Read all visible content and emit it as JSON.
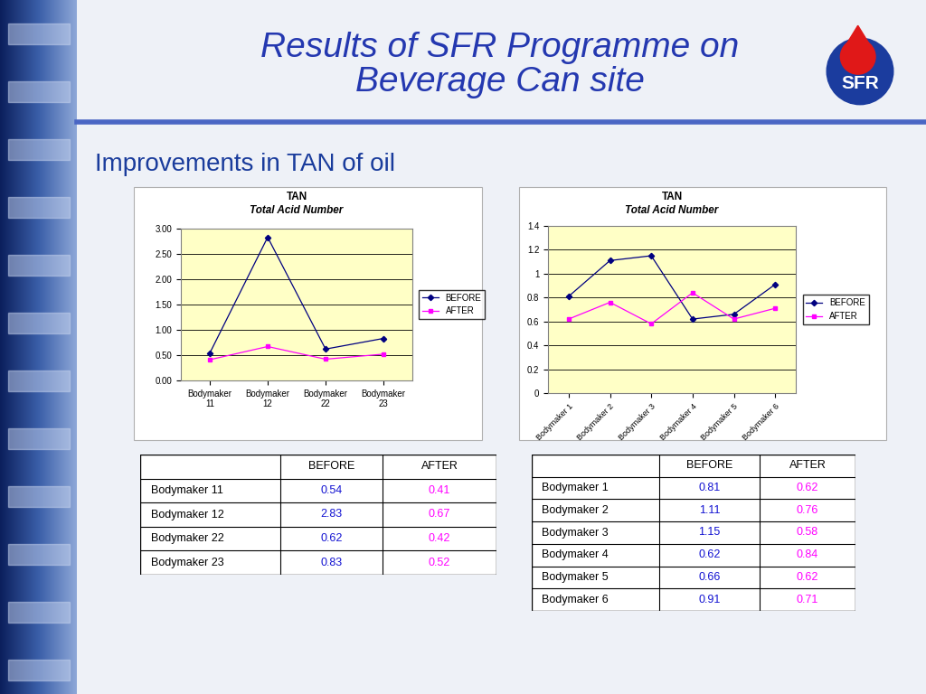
{
  "title": "Results of SFR Programme on Beverage Can site",
  "logo": "SFR",
  "subtitle": "Improvements in TAN of oil",
  "chart_data": [
    {
      "type": "line",
      "title": "TAN",
      "subtitle": "Total Acid Number",
      "categories": [
        "Bodymaker 11",
        "Bodymaker 12",
        "Bodymaker 22",
        "Bodymaker 23"
      ],
      "series": [
        {
          "name": "BEFORE",
          "color": "#000080",
          "marker": "diamond",
          "values": [
            0.54,
            2.83,
            0.62,
            0.83
          ]
        },
        {
          "name": "AFTER",
          "color": "#ff00ff",
          "marker": "square",
          "values": [
            0.41,
            0.67,
            0.42,
            0.52
          ]
        }
      ],
      "ylim": [
        0,
        3
      ],
      "yticks": [
        {
          "value": 0,
          "label": "0.00"
        },
        {
          "value": 0.5,
          "label": "0.50"
        },
        {
          "value": 1,
          "label": "1.00"
        },
        {
          "value": 1.5,
          "label": "1.50"
        },
        {
          "value": 2,
          "label": "2.00"
        },
        {
          "value": 2.5,
          "label": "2.50"
        },
        {
          "value": 3,
          "label": "3.00"
        }
      ],
      "grid": true,
      "legend": "right"
    },
    {
      "type": "line",
      "title": "TAN",
      "subtitle": "Total Acid Number",
      "categories": [
        "Bodymaker 1",
        "Bodymaker 2",
        "Bodymaker 3",
        "Bodymaker 4",
        "Bodymaker 5",
        "Bodymaker 6"
      ],
      "series": [
        {
          "name": "BEFORE",
          "color": "#000080",
          "marker": "diamond",
          "values": [
            0.81,
            1.11,
            1.15,
            0.62,
            0.66,
            0.91
          ]
        },
        {
          "name": "AFTER",
          "color": "#ff00ff",
          "marker": "square",
          "values": [
            0.62,
            0.76,
            0.58,
            0.84,
            0.62,
            0.71
          ]
        }
      ],
      "ylim": [
        0,
        1.4
      ],
      "yticks": [
        0,
        0.2,
        0.4,
        0.6,
        0.8,
        1,
        1.2,
        1.4
      ],
      "grid": true,
      "legend": "right"
    }
  ],
  "tables": [
    {
      "columns": [
        "BEFORE",
        "AFTER"
      ],
      "rows": [
        [
          "Bodymaker 11",
          0.54,
          0.41
        ],
        [
          "Bodymaker 12",
          2.83,
          0.67
        ],
        [
          "Bodymaker 22",
          0.62,
          0.42
        ],
        [
          "Bodymaker 23",
          0.83,
          0.52
        ]
      ]
    },
    {
      "columns": [
        "BEFORE",
        "AFTER"
      ],
      "rows": [
        [
          "Bodymaker 1",
          0.81,
          0.62
        ],
        [
          "Bodymaker 2",
          1.11,
          0.76
        ],
        [
          "Bodymaker 3",
          1.15,
          0.58
        ],
        [
          "Bodymaker 4",
          0.62,
          0.84
        ],
        [
          "Bodymaker 5",
          0.66,
          0.62
        ],
        [
          "Bodymaker 6",
          0.91,
          0.71
        ]
      ]
    }
  ]
}
